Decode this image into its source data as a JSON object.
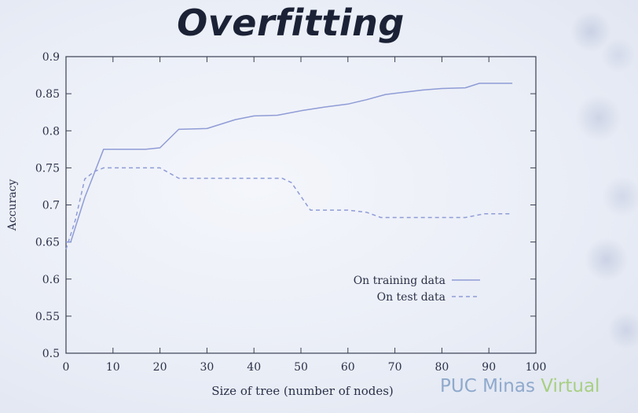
{
  "slide": {
    "title": "Overfitting",
    "brand": {
      "text": "PUC Minas ",
      "accent": "Virtual"
    }
  },
  "colors": {
    "axis": "#3a4054",
    "training_line": "#8f9cd6",
    "test_line": "#8f9cd6",
    "brand": "#8fa9cc",
    "brand_accent": "#a8cf82"
  },
  "chart_data": {
    "type": "line",
    "title": "",
    "xlabel": "Size of tree (number of nodes)",
    "ylabel": "Accuracy",
    "xlim": [
      0,
      100
    ],
    "ylim": [
      0.5,
      0.9
    ],
    "xticks": [
      0,
      10,
      20,
      30,
      40,
      50,
      60,
      70,
      80,
      90,
      100
    ],
    "yticks": [
      0.5,
      0.55,
      0.6,
      0.65,
      0.7,
      0.75,
      0.8,
      0.85,
      0.9
    ],
    "grid": false,
    "legend_position": "bottom-right",
    "series": [
      {
        "name": "On training data",
        "style": "solid",
        "points": [
          [
            0,
            0.65
          ],
          [
            1,
            0.65
          ],
          [
            4,
            0.71
          ],
          [
            8,
            0.775
          ],
          [
            12,
            0.775
          ],
          [
            17,
            0.775
          ],
          [
            20,
            0.777
          ],
          [
            24,
            0.802
          ],
          [
            30,
            0.803
          ],
          [
            36,
            0.815
          ],
          [
            40,
            0.82
          ],
          [
            45,
            0.821
          ],
          [
            50,
            0.827
          ],
          [
            55,
            0.832
          ],
          [
            60,
            0.836
          ],
          [
            64,
            0.842
          ],
          [
            68,
            0.849
          ],
          [
            72,
            0.852
          ],
          [
            76,
            0.855
          ],
          [
            80,
            0.857
          ],
          [
            85,
            0.858
          ],
          [
            88,
            0.864
          ],
          [
            95,
            0.864
          ]
        ]
      },
      {
        "name": "On test data",
        "style": "dashed",
        "points": [
          [
            0,
            0.64
          ],
          [
            2,
            0.68
          ],
          [
            4,
            0.735
          ],
          [
            6,
            0.745
          ],
          [
            8,
            0.75
          ],
          [
            20,
            0.75
          ],
          [
            24,
            0.736
          ],
          [
            30,
            0.736
          ],
          [
            46,
            0.736
          ],
          [
            48,
            0.73
          ],
          [
            52,
            0.693
          ],
          [
            60,
            0.693
          ],
          [
            64,
            0.69
          ],
          [
            67,
            0.683
          ],
          [
            75,
            0.683
          ],
          [
            85,
            0.683
          ],
          [
            89,
            0.688
          ],
          [
            95,
            0.688
          ]
        ]
      }
    ]
  }
}
